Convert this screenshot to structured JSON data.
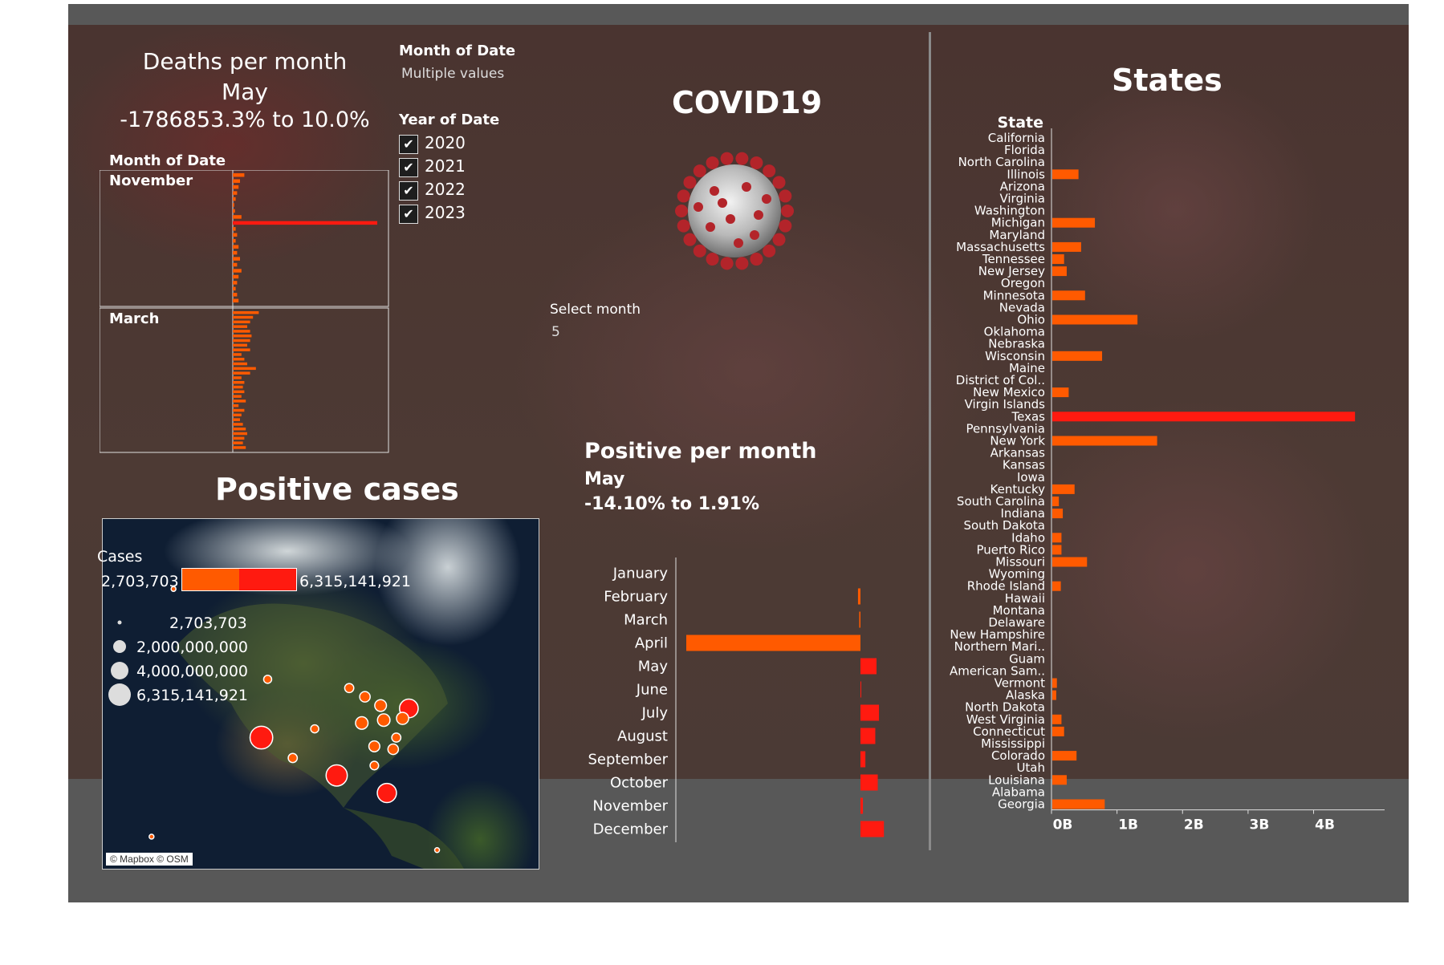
{
  "deaths_panel": {
    "title": "Deaths per month",
    "month": "May",
    "range": "-1786853.3% to 10.0%",
    "axis_label": "Month of Date",
    "groups": [
      "November",
      "March"
    ]
  },
  "filters": {
    "month_label": "Month of Date",
    "month_value": "Multiple values",
    "year_label": "Year of Date",
    "years": [
      {
        "label": "2020",
        "checked": "✔"
      },
      {
        "label": "2021",
        "checked": "✔"
      },
      {
        "label": "2022",
        "checked": "✔"
      },
      {
        "label": "2023",
        "checked": "✔"
      }
    ],
    "select_month_label": "Select month",
    "select_month_value": "5"
  },
  "covid_title": "COVID19",
  "positive_cases": {
    "title": "Positive cases",
    "legend_title": "Cases",
    "color_min": "2,703,703",
    "color_max": "6,315,141,921",
    "size_legend": [
      "2,703,703",
      "2,000,000,000",
      "4,000,000,000",
      "6,315,141,921"
    ],
    "credit": "© Mapbox © OSM"
  },
  "positive_per_month": {
    "title": "Positive per month",
    "month": "May",
    "range": "-14.10% to 1.91%"
  },
  "states_title": "States",
  "colors": {
    "orange": "#ff5a00",
    "red": "#ff1a10",
    "panel": "#585858"
  },
  "chart_data": [
    {
      "type": "bar",
      "title": "Positive per month",
      "categories": [
        "January",
        "February",
        "March",
        "April",
        "May",
        "June",
        "July",
        "August",
        "September",
        "October",
        "November",
        "December"
      ],
      "values": [
        0.0,
        -0.002,
        -0.001,
        -0.141,
        0.013,
        0.0005,
        0.015,
        0.012,
        0.004,
        0.014,
        0.002,
        0.019
      ],
      "highlight": [
        "normal",
        "orange",
        "orange",
        "orange",
        "red",
        "red",
        "red",
        "red",
        "red",
        "red",
        "red",
        "red"
      ]
    },
    {
      "type": "bar",
      "title": "States",
      "ylabel": "State",
      "xticks": [
        "0B",
        "1B",
        "2B",
        "3B",
        "4B"
      ],
      "xlim": [
        0,
        4.9
      ],
      "categories": [
        "California",
        "Florida",
        "North Carolina",
        "Illinois",
        "Arizona",
        "Virginia",
        "Washington",
        "Michigan",
        "Maryland",
        "Massachusetts",
        "Tennessee",
        "New Jersey",
        "Oregon",
        "Minnesota",
        "Nevada",
        "Ohio",
        "Oklahoma",
        "Nebraska",
        "Wisconsin",
        "Maine",
        "District of Col..",
        "New Mexico",
        "Virgin Islands",
        "Texas",
        "Pennsylvania",
        "New York",
        "Arkansas",
        "Kansas",
        "Iowa",
        "Kentucky",
        "South Carolina",
        "Indiana",
        "South Dakota",
        "Idaho",
        "Puerto Rico",
        "Missouri",
        "Wyoming",
        "Rhode Island",
        "Hawaii",
        "Montana",
        "Delaware",
        "New Hampshire",
        "Northern Mari..",
        "Guam",
        "American Sam..",
        "Vermont",
        "Alaska",
        "North Dakota",
        "West Virginia",
        "Connecticut",
        "Mississippi",
        "Colorado",
        "Utah",
        "Louisiana",
        "Alabama",
        "Georgia"
      ],
      "values": [
        0,
        0,
        0,
        0.4,
        0,
        0,
        0,
        0.65,
        0,
        0.44,
        0.18,
        0.22,
        0,
        0.5,
        0,
        1.3,
        0,
        0,
        0.76,
        0,
        0,
        0.25,
        0,
        4.62,
        0,
        1.6,
        0,
        0,
        0,
        0.34,
        0.1,
        0.16,
        0,
        0.14,
        0.14,
        0.53,
        0,
        0.13,
        0,
        0,
        0,
        0,
        0,
        0,
        0,
        0.07,
        0.06,
        0,
        0.14,
        0.18,
        0,
        0.37,
        0,
        0.22,
        0,
        0.8
      ],
      "highlight_max": "Texas"
    },
    {
      "type": "bar",
      "title": "Deaths per month",
      "xlabel": "Month of Date",
      "groups": [
        {
          "name": "November",
          "values": [
            0.08,
            0.05,
            0.04,
            0.03,
            0.02,
            0.01,
            0.015,
            0.06,
            1.0,
            0.02,
            0.03,
            0.02,
            0.04,
            0.03,
            0.05,
            0.03,
            0.06,
            0.04,
            0.03,
            0.02,
            0.03,
            0.04
          ]
        },
        {
          "name": "March",
          "values": [
            0.18,
            0.14,
            0.12,
            0.1,
            0.12,
            0.13,
            0.12,
            0.1,
            0.12,
            0.06,
            0.08,
            0.1,
            0.16,
            0.12,
            0.06,
            0.08,
            0.07,
            0.08,
            0.06,
            0.09,
            0.04,
            0.08,
            0.06,
            0.05,
            0.07,
            0.09,
            0.1,
            0.08,
            0.07,
            0.09
          ]
        }
      ]
    },
    {
      "type": "scatter",
      "title": "Positive cases",
      "note": "proportional-symbol map of case counts by location",
      "points": [
        {
          "lon": -122,
          "lat": 37.5,
          "cases": 5600000000
        },
        {
          "lon": -98,
          "lat": 31,
          "cases": 4900000000
        },
        {
          "lon": -82,
          "lat": 28,
          "cases": 4000000000
        },
        {
          "lon": -75,
          "lat": 42.5,
          "cases": 3800000000
        },
        {
          "lon": -90,
          "lat": 40,
          "cases": 1700000000
        },
        {
          "lon": -84,
          "lat": 43,
          "cases": 1500000000
        },
        {
          "lon": -83,
          "lat": 40.5,
          "cases": 1700000000
        },
        {
          "lon": -77,
          "lat": 40.8,
          "cases": 1600000000
        },
        {
          "lon": -80,
          "lat": 35.5,
          "cases": 1200000000
        },
        {
          "lon": -86,
          "lat": 36,
          "cases": 1300000000
        },
        {
          "lon": -89,
          "lat": 44.5,
          "cases": 1200000000
        },
        {
          "lon": -94,
          "lat": 46,
          "cases": 900000000
        },
        {
          "lon": -112,
          "lat": 34,
          "cases": 900000000
        },
        {
          "lon": -105,
          "lat": 39,
          "cases": 700000000
        },
        {
          "lon": -86,
          "lat": 32.7,
          "cases": 800000000
        },
        {
          "lon": -79,
          "lat": 37.5,
          "cases": 900000000
        },
        {
          "lon": -120,
          "lat": 47.5,
          "cases": 700000000
        },
        {
          "lon": -150,
          "lat": 63,
          "cases": 100000000
        },
        {
          "lon": -157,
          "lat": 20.5,
          "cases": 80000000
        },
        {
          "lon": -66,
          "lat": 18.2,
          "cases": 250000000
        }
      ]
    }
  ]
}
